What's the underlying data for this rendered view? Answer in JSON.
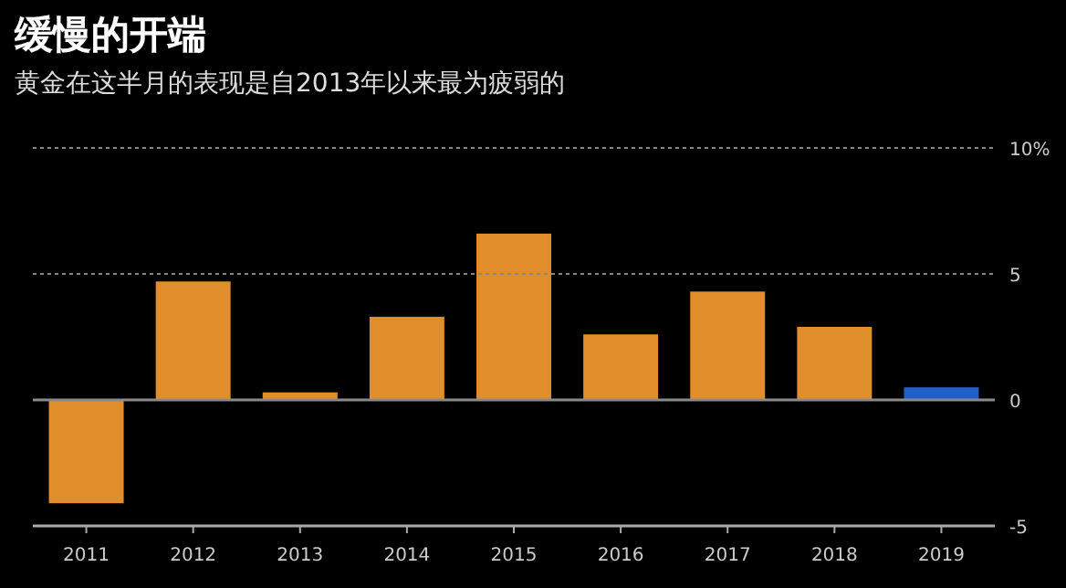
{
  "chart_data": {
    "type": "bar",
    "title": "缓慢的开端",
    "subtitle": "黄金在这半月的表现是自2013年以来最为疲弱的",
    "categories": [
      "2011",
      "2012",
      "2013",
      "2014",
      "2015",
      "2016",
      "2017",
      "2018",
      "2019"
    ],
    "values": [
      -4.1,
      4.7,
      0.3,
      3.3,
      6.6,
      2.6,
      4.3,
      2.9,
      0.5
    ],
    "colors": [
      "#e08e2b",
      "#e08e2b",
      "#e08e2b",
      "#e08e2b",
      "#e08e2b",
      "#e08e2b",
      "#e08e2b",
      "#e08e2b",
      "#1f5fc6"
    ],
    "ylim": [
      -5,
      10
    ],
    "yticks": [
      {
        "value": 10,
        "label": "10%"
      },
      5,
      0,
      -5
    ],
    "ref_lines": [
      {
        "axis": "y",
        "value": 10,
        "label": null,
        "color": "#888888",
        "line_style": "dotted"
      },
      {
        "axis": "y",
        "value": 5,
        "label": null,
        "color": "#888888",
        "line_style": "dotted"
      },
      {
        "axis": "y",
        "value": 0,
        "label": null,
        "color": "#8a8a8a",
        "line_style": "solid"
      }
    ]
  }
}
